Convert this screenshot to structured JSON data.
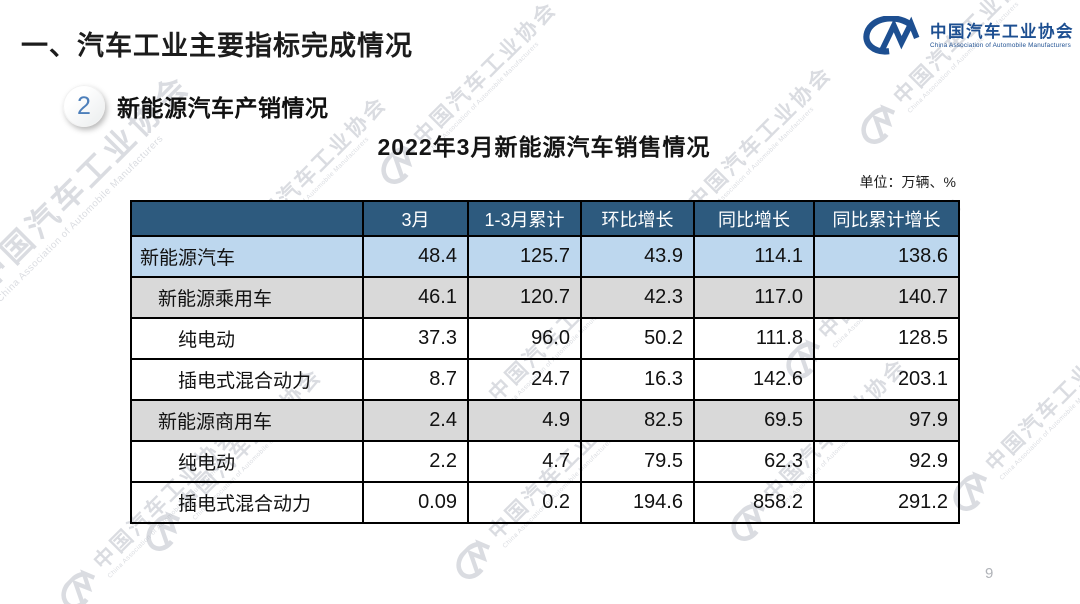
{
  "slide": {
    "title": "一、汽车工业主要指标完成情况",
    "section_number": "2",
    "section_title": "新能源汽车产销情况",
    "page_number": "9"
  },
  "logo": {
    "mark": "cam-logo-mark",
    "name_cn": "中国汽车工业协会",
    "name_en": "China Association of Automobile Manufacturers"
  },
  "watermark": {
    "text_cn": "中国汽车工业协会",
    "text_en": "China Association of Automobile Manufacturers"
  },
  "chart_data": {
    "type": "table",
    "title": "2022年3月新能源汽车销售情况",
    "unit_label": "单位：万辆、%",
    "columns": [
      "",
      "3月",
      "1-3月累计",
      "环比增长",
      "同比增长",
      "同比累计增长"
    ],
    "rows": [
      {
        "label": "新能源汽车",
        "indent": 0,
        "highlight": "blue",
        "values": [
          "48.4",
          "125.7",
          "43.9",
          "114.1",
          "138.6"
        ]
      },
      {
        "label": "新能源乘用车",
        "indent": 1,
        "highlight": "gray",
        "values": [
          "46.1",
          "120.7",
          "42.3",
          "117.0",
          "140.7"
        ]
      },
      {
        "label": "纯电动",
        "indent": 2,
        "highlight": "white",
        "values": [
          "37.3",
          "96.0",
          "50.2",
          "111.8",
          "128.5"
        ]
      },
      {
        "label": "插电式混合动力",
        "indent": 2,
        "highlight": "white",
        "values": [
          "8.7",
          "24.7",
          "16.3",
          "142.6",
          "203.1"
        ]
      },
      {
        "label": "新能源商用车",
        "indent": 1,
        "highlight": "gray",
        "values": [
          "2.4",
          "4.9",
          "82.5",
          "69.5",
          "97.9"
        ]
      },
      {
        "label": "纯电动",
        "indent": 2,
        "highlight": "white",
        "values": [
          "2.2",
          "4.7",
          "79.5",
          "62.3",
          "92.9"
        ]
      },
      {
        "label": "插电式混合动力",
        "indent": 2,
        "highlight": "white",
        "values": [
          "0.09",
          "0.2",
          "194.6",
          "858.2",
          "291.2"
        ]
      }
    ]
  },
  "colors": {
    "header_bg": "#2D5A7E",
    "row_highlight_blue": "#BDD7EE",
    "row_highlight_gray": "#D9D9D9",
    "table_border": "#000000",
    "brand_blue": "#1D4F91",
    "badge_number_blue": "#4D7FBA",
    "watermark_gray": "#A9AEB9",
    "page_number_gray": "#B0B3B8"
  }
}
